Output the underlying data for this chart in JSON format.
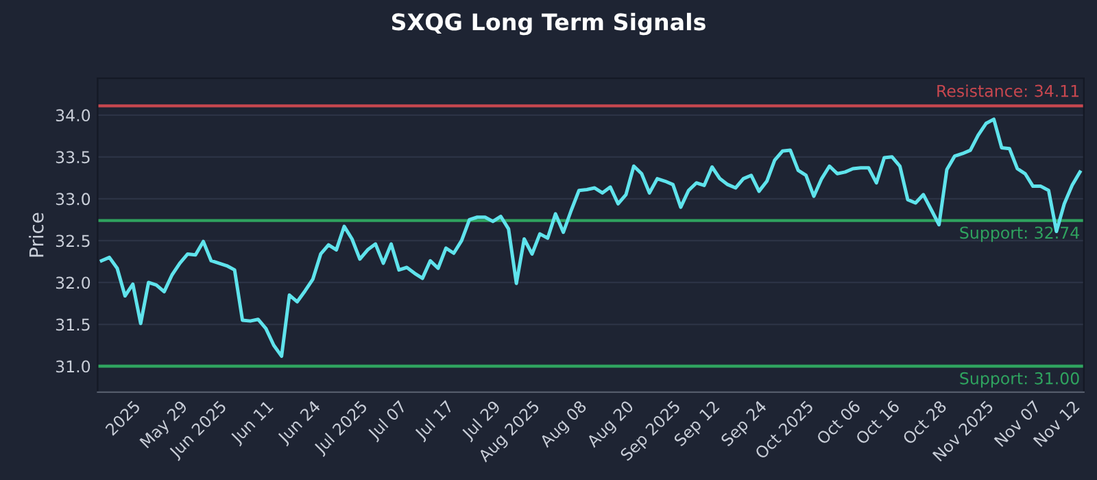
{
  "chart_data": {
    "type": "line",
    "title": "SXQG Long Term Signals",
    "ylabel": "Price",
    "categories": [
      null,
      null,
      null,
      null,
      "2025",
      null,
      null,
      null,
      null,
      null,
      "May 29",
      null,
      null,
      null,
      null,
      "Jun 2025",
      null,
      null,
      null,
      null,
      null,
      "Jun 11",
      null,
      null,
      null,
      null,
      null,
      "Jun 24",
      null,
      null,
      null,
      null,
      null,
      "Jul 2025",
      null,
      null,
      null,
      null,
      "Jul 07",
      null,
      null,
      null,
      null,
      null,
      "Jul 17",
      null,
      null,
      null,
      null,
      null,
      "Jul 29",
      null,
      null,
      null,
      null,
      "Aug 2025",
      null,
      null,
      null,
      null,
      null,
      "Aug 08",
      null,
      null,
      null,
      null,
      null,
      "Aug 20",
      null,
      null,
      null,
      null,
      null,
      "Sep 2025",
      null,
      null,
      null,
      null,
      "Sep 12",
      null,
      null,
      null,
      null,
      null,
      "Sep 24",
      null,
      null,
      null,
      null,
      null,
      "Oct 2025",
      null,
      null,
      null,
      null,
      null,
      "Oct 06",
      null,
      null,
      null,
      null,
      "Oct 16",
      null,
      null,
      null,
      null,
      null,
      "Oct 28",
      null,
      null,
      null,
      null,
      null,
      "Nov 2025",
      null,
      null,
      null,
      null,
      null,
      "Nov 07",
      null,
      null,
      null,
      null,
      "Nov 12",
      null
    ],
    "series": [
      {
        "color": "#5fe3ec",
        "values": [
          32.26,
          32.3,
          32.17,
          31.84,
          31.98,
          31.51,
          32.0,
          31.97,
          31.89,
          32.09,
          32.23,
          32.34,
          32.33,
          32.49,
          32.26,
          32.23,
          32.2,
          32.15,
          31.55,
          31.54,
          31.56,
          31.45,
          31.25,
          31.12,
          31.85,
          31.77,
          31.9,
          32.04,
          32.34,
          32.45,
          32.39,
          32.67,
          32.52,
          32.28,
          32.39,
          32.46,
          32.23,
          32.46,
          32.15,
          32.18,
          32.11,
          32.05,
          32.26,
          32.17,
          32.41,
          32.35,
          32.5,
          32.75,
          32.78,
          32.78,
          32.73,
          32.79,
          32.64,
          31.99,
          32.52,
          32.34,
          32.58,
          32.53,
          32.82,
          32.6,
          32.86,
          33.1,
          33.11,
          33.13,
          33.07,
          33.14,
          32.94,
          33.05,
          33.39,
          33.3,
          33.07,
          33.24,
          33.21,
          33.17,
          32.9,
          33.1,
          33.19,
          33.16,
          33.38,
          33.24,
          33.17,
          33.13,
          33.24,
          33.28,
          33.09,
          33.21,
          33.46,
          33.57,
          33.58,
          33.34,
          33.28,
          33.03,
          33.24,
          33.39,
          33.3,
          33.32,
          33.36,
          33.37,
          33.37,
          33.19,
          33.49,
          33.5,
          33.39,
          32.99,
          32.95,
          33.05,
          32.87,
          32.69,
          33.35,
          33.51,
          33.54,
          33.58,
          33.76,
          33.9,
          33.95,
          33.61,
          33.6,
          33.36,
          33.3,
          33.15,
          33.15,
          33.1,
          32.61,
          32.94,
          33.16,
          33.32
        ]
      }
    ],
    "ylim": [
      30.69,
      34.44
    ],
    "yticks": [
      {
        "value": 31,
        "label": "31.0"
      },
      31.5,
      {
        "value": 32,
        "label": "32.0"
      },
      32.5,
      {
        "value": 33,
        "label": "33.0"
      },
      33.5,
      {
        "value": 34,
        "label": "34.0"
      }
    ],
    "grid": "y",
    "ref_lines": [
      {
        "axis": "y",
        "value": 34.11,
        "label": "Resistance: 34.11",
        "color": "#c8474f"
      },
      {
        "axis": "y",
        "value": 32.74,
        "label": "Support: 32.74",
        "color": "#2fa35f"
      },
      {
        "axis": "y",
        "value": 31.0,
        "label": "Support: 31.00",
        "color": "#2fa35f"
      }
    ]
  }
}
